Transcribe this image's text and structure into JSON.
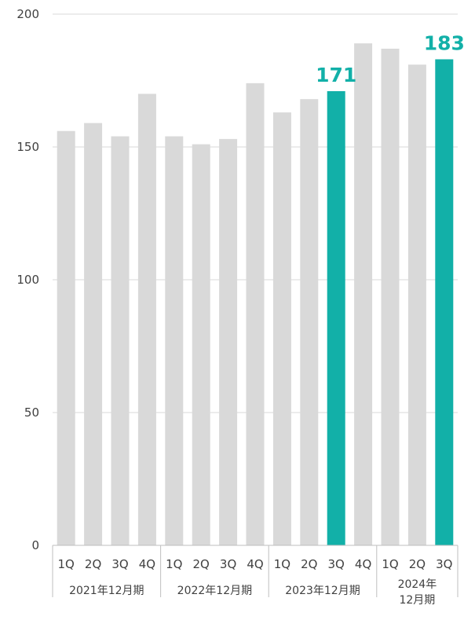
{
  "chart_data": {
    "type": "bar",
    "title": "",
    "xlabel": "",
    "ylabel": "",
    "ylim": [
      0,
      200
    ],
    "yticks": [
      0,
      50,
      100,
      150,
      200
    ],
    "grid": true,
    "legend": "none",
    "colors": {
      "default": "#d9d9d9",
      "highlight": "#12b0a8",
      "axis": "#bfbfbf",
      "text": "#404040"
    },
    "categories": [
      "1Q",
      "2Q",
      "3Q",
      "4Q",
      "1Q",
      "2Q",
      "3Q",
      "4Q",
      "1Q",
      "2Q",
      "3Q",
      "4Q",
      "1Q",
      "2Q",
      "3Q"
    ],
    "values": [
      156,
      159,
      154,
      170,
      154,
      151,
      153,
      174,
      163,
      168,
      171,
      189,
      187,
      181,
      183
    ],
    "highlight_indices": [
      10,
      14
    ],
    "data_labels": [
      {
        "index": 10,
        "text": "171"
      },
      {
        "index": 14,
        "text": "183"
      }
    ],
    "groups": [
      {
        "lines": [
          "2021年12月期"
        ],
        "start": 0,
        "count": 4
      },
      {
        "lines": [
          "2022年12月期"
        ],
        "start": 4,
        "count": 4
      },
      {
        "lines": [
          "2023年12月期"
        ],
        "start": 8,
        "count": 4
      },
      {
        "lines": [
          "2024年",
          "12月期"
        ],
        "start": 12,
        "count": 3
      }
    ]
  }
}
